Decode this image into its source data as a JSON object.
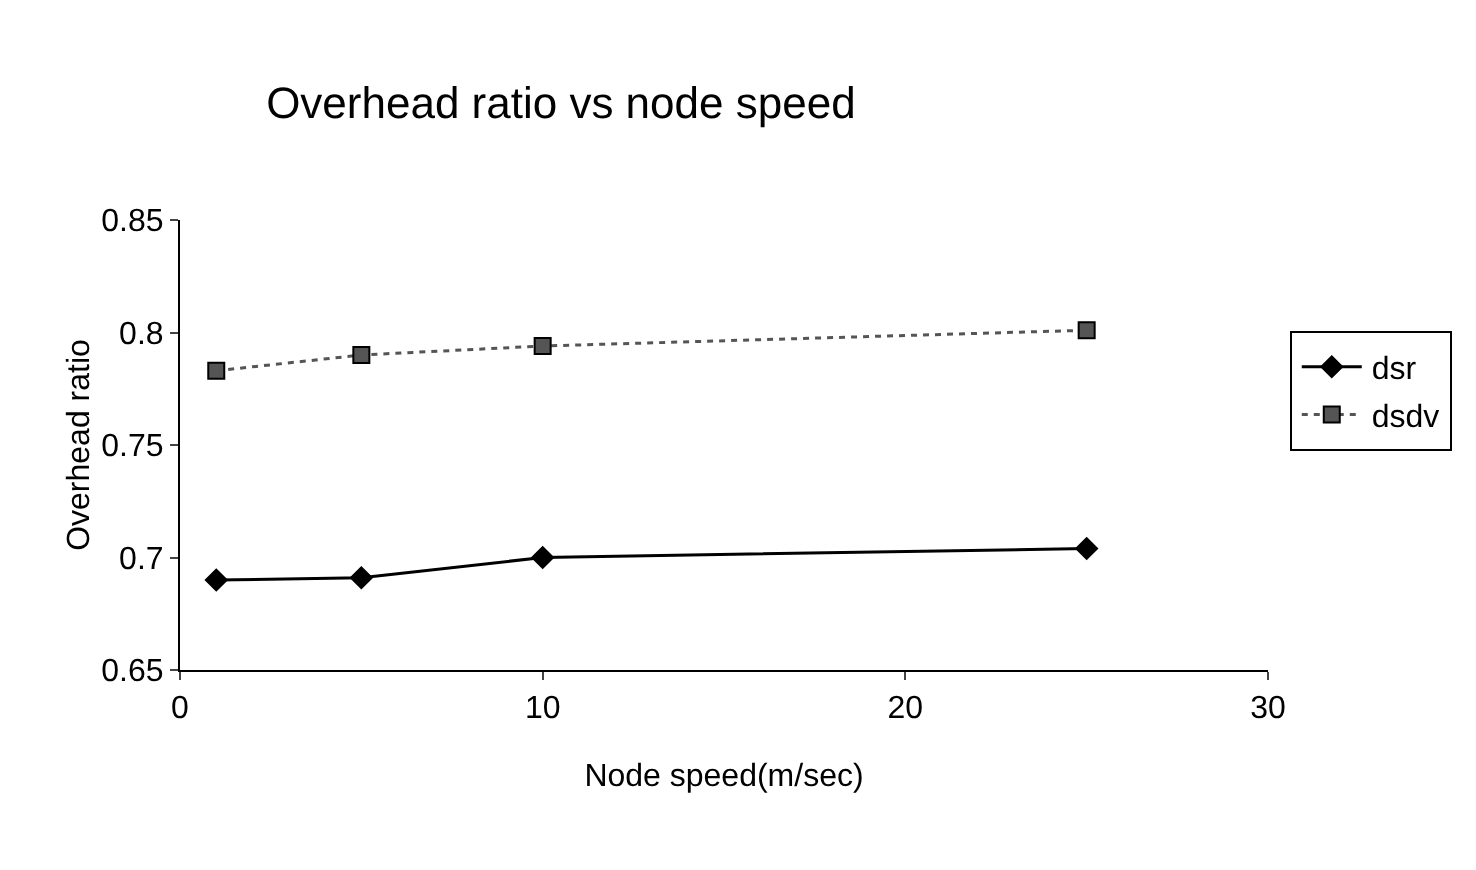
{
  "chart_data": {
    "type": "line",
    "title": "Overhead ratio vs node speed",
    "xlabel": "Node speed(m/sec)",
    "ylabel": "Overhead ratio",
    "x": [
      1,
      5,
      10,
      25
    ],
    "series": [
      {
        "name": "dsr",
        "color": "#000000",
        "values": [
          0.69,
          0.691,
          0.7,
          0.704
        ],
        "marker": "diamond",
        "line_style": "solid"
      },
      {
        "name": "dsdv",
        "color": "#555555",
        "values": [
          0.783,
          0.79,
          0.794,
          0.801
        ],
        "marker": "square",
        "line_style": "dotted"
      }
    ],
    "xlim": [
      0,
      30
    ],
    "xticks": [
      0,
      10,
      20,
      30
    ],
    "ylim": [
      0.65,
      0.85
    ],
    "yticks": [
      0.65,
      0.7,
      0.75,
      0.8,
      0.85
    ],
    "grid": false,
    "legend": "right"
  }
}
